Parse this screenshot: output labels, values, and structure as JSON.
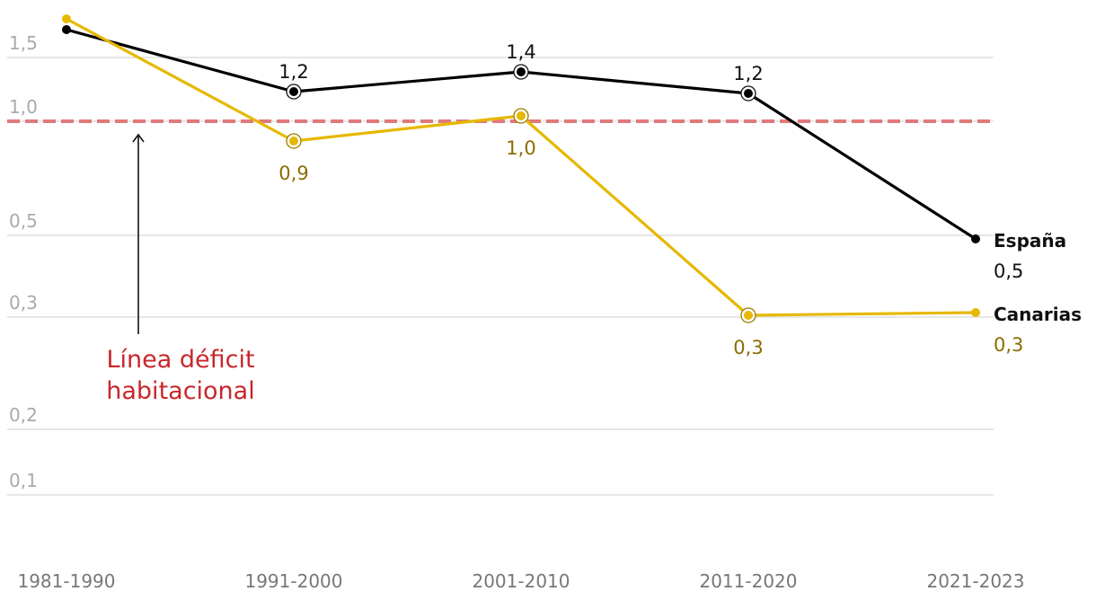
{
  "chart_data": {
    "type": "line",
    "x": [
      "1981-1990",
      "1991-2000",
      "2001-2010",
      "2011-2020",
      "2021-2023"
    ],
    "y_ticks": [
      {
        "value": 1.5,
        "label": "1,5"
      },
      {
        "value": 1.0,
        "label": "1,0"
      },
      {
        "value": 0.5,
        "label": "0,5"
      },
      {
        "value": 0.3,
        "label": "0,3"
      },
      {
        "value": 0.2,
        "label": "0,2"
      },
      {
        "value": 0.1,
        "label": "0,1"
      }
    ],
    "y_scale": "nonlinear",
    "grid": true,
    "series": [
      {
        "name": "España",
        "color": "#000000",
        "values": [
          1.6,
          1.2,
          1.4,
          1.2,
          0.5
        ],
        "labels": [
          "",
          "1,2",
          "1,4",
          "1,2",
          "0,5"
        ],
        "label_position": "above"
      },
      {
        "name": "Canarias",
        "color": "#e6b800",
        "values": [
          1.7,
          0.9,
          1.0,
          0.3,
          0.3
        ],
        "labels": [
          "",
          "0,9",
          "1,0",
          "0,3",
          "0,3"
        ],
        "label_position": "below"
      }
    ],
    "reference_line": {
      "value": 0.95,
      "label_lines": [
        "Línea déficit",
        "habitacional"
      ],
      "color": "#e07a7a",
      "label_color": "#c8262b"
    }
  }
}
